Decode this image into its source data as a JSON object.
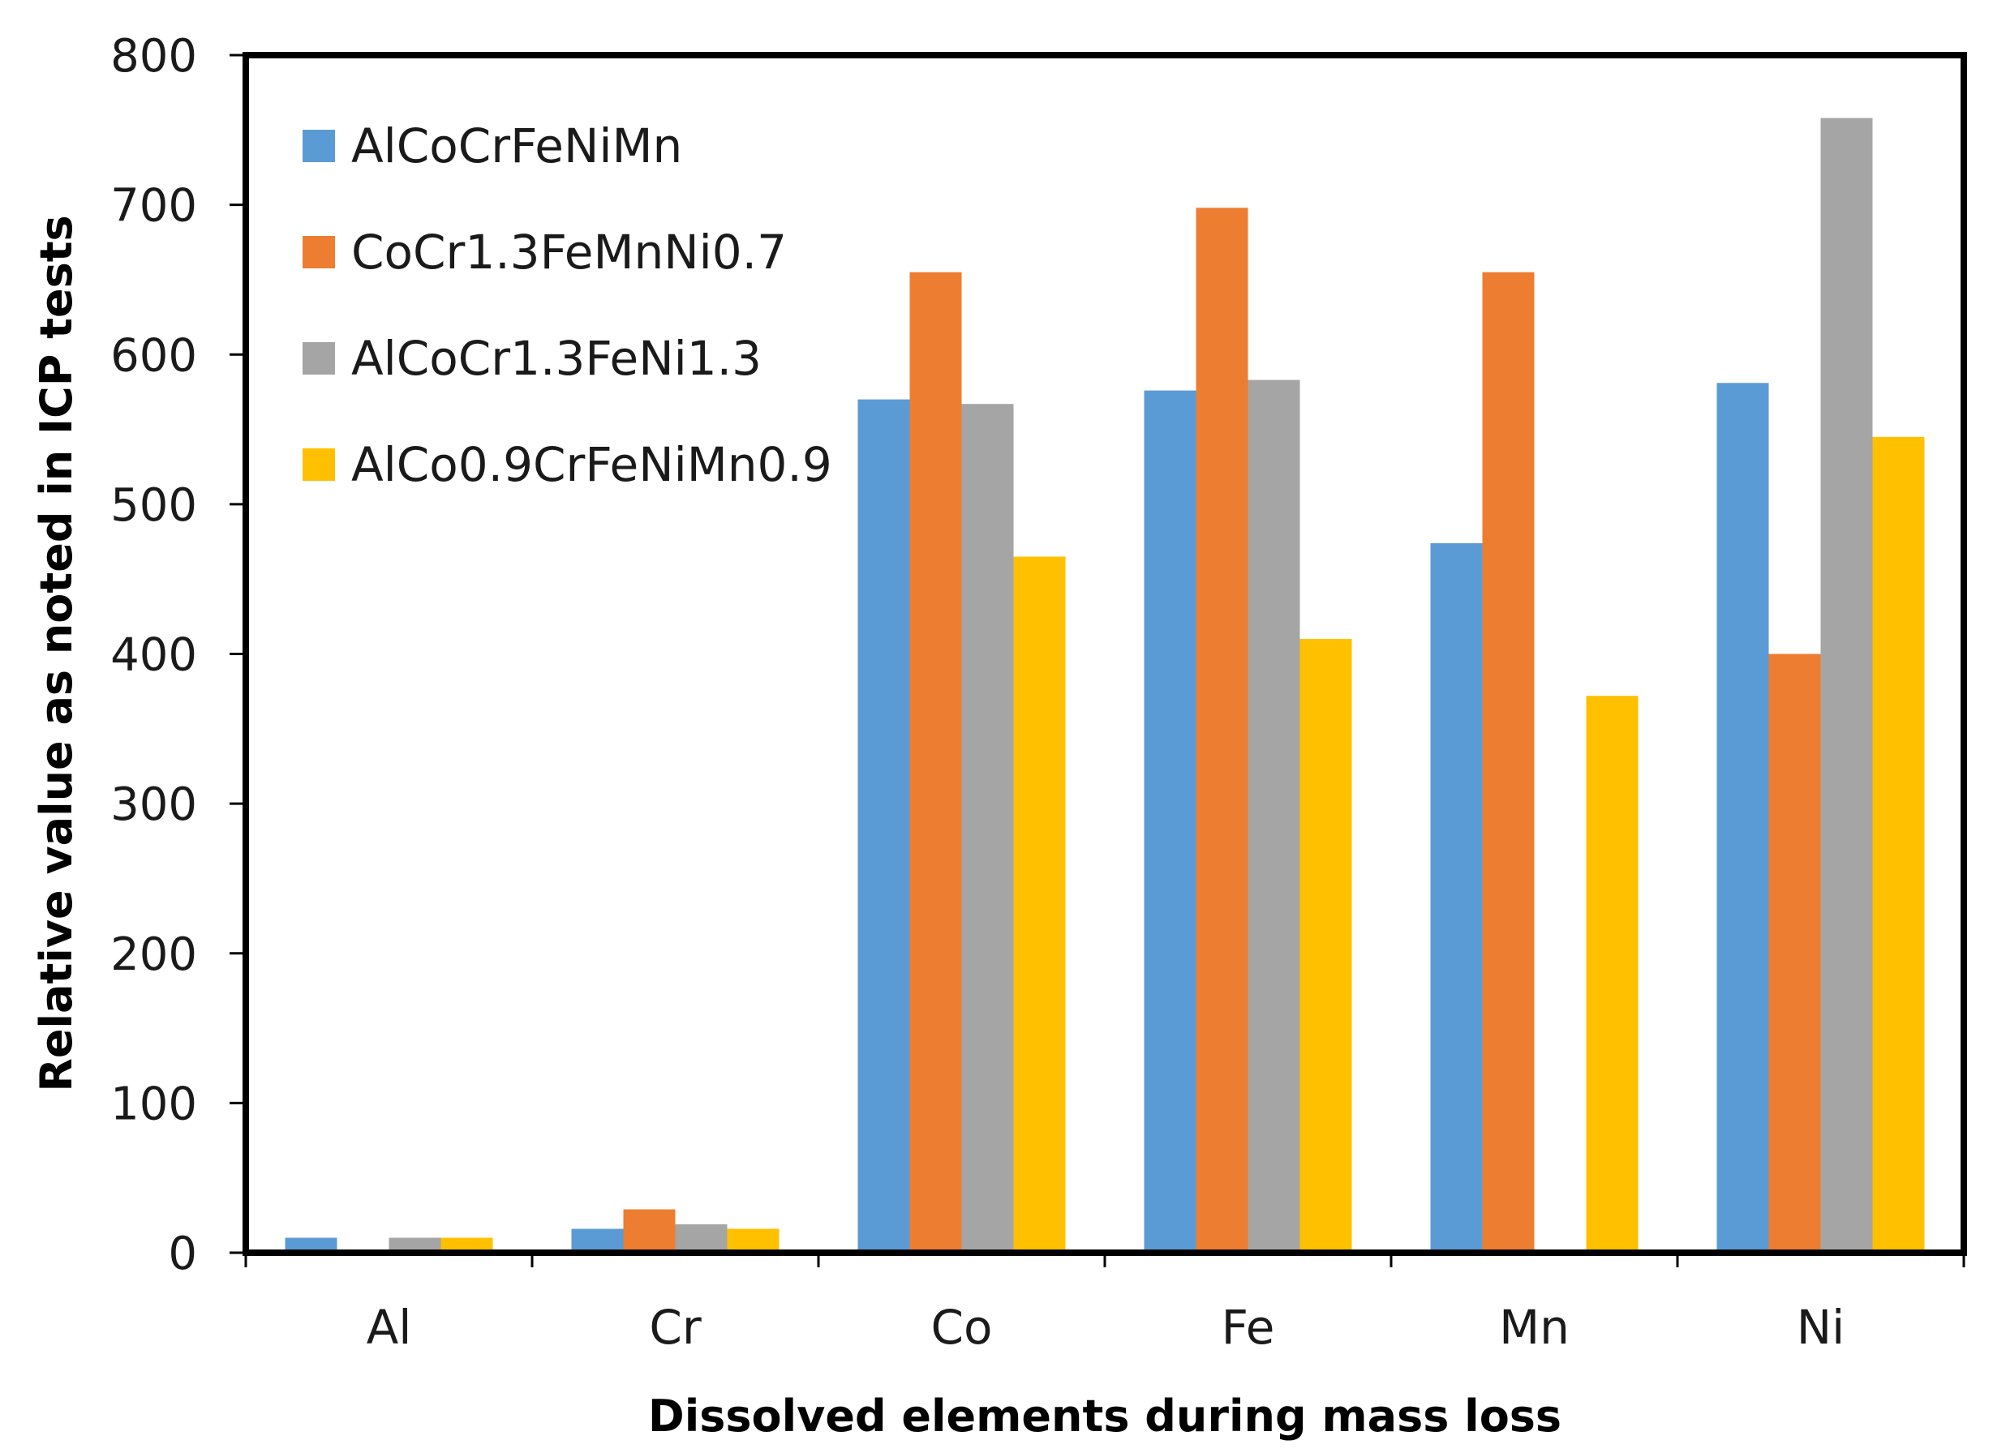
{
  "chart_data": {
    "type": "bar",
    "title": "",
    "xlabel": "Dissolved elements during mass loss",
    "ylabel": "Relative value as noted in ICP tests",
    "ylim": [
      0,
      800
    ],
    "yticks": [
      "0",
      "100",
      "200",
      "300",
      "400",
      "500",
      "600",
      "700",
      "800"
    ],
    "ytick_values": [
      0,
      100,
      200,
      300,
      400,
      500,
      600,
      700,
      800
    ],
    "categories": [
      "Al",
      "Cr",
      "Co",
      "Fe",
      "Mn",
      "Ni"
    ],
    "legend_position": "top-left",
    "grid": false,
    "series": [
      {
        "name": "AlCoCrFeNiMn",
        "color": "#5b9bd5",
        "values": [
          10,
          16,
          570,
          576,
          474,
          581
        ]
      },
      {
        "name": "CoCr1.3FeMnNi0.7",
        "color": "#ed7d31",
        "values": [
          0,
          29,
          655,
          698,
          655,
          400
        ]
      },
      {
        "name": "AlCoCr1.3FeNi1.3",
        "color": "#a5a5a5",
        "values": [
          10,
          19,
          567,
          583,
          0,
          758
        ]
      },
      {
        "name": "AlCo0.9CrFeNiMn0.9",
        "color": "#ffc000",
        "values": [
          10,
          16,
          465,
          410,
          372,
          545
        ]
      }
    ]
  }
}
